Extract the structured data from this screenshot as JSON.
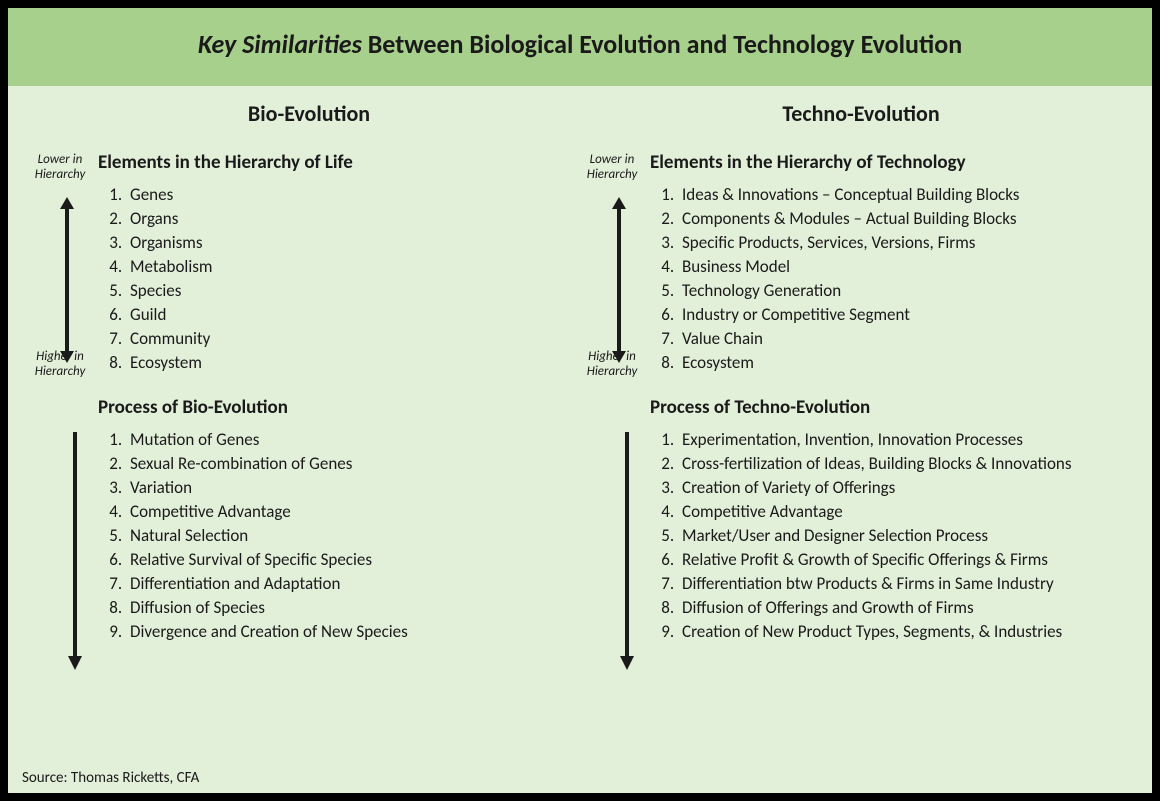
{
  "colors": {
    "page_bg": "#000000",
    "body_bg": "#e2efd9",
    "header_bg": "#a8d08d",
    "text": "#1a1a1a",
    "arrow": "#1a1a1a"
  },
  "typography": {
    "title_fontsize": 26,
    "col_header_fontsize": 22,
    "section_title_fontsize": 19,
    "list_fontsize": 17,
    "hierarchy_label_fontsize": 13,
    "source_fontsize": 15,
    "font_family": "Calibri"
  },
  "title": {
    "italic_part": "Key Similarities",
    "rest": " Between Biological Evolution and Technology Evolution"
  },
  "hierarchy_labels": {
    "top": "Lower in Hierarchy",
    "bottom": "Higher in Hierarchy"
  },
  "left": {
    "header": "Bio-Evolution",
    "elements_title": "Elements in the Hierarchy of Life",
    "elements": [
      "Genes",
      "Organs",
      "Organisms",
      "Metabolism",
      "Species",
      "Guild",
      "Community",
      "Ecosystem"
    ],
    "process_title": "Process of Bio-Evolution",
    "process": [
      "Mutation of Genes",
      "Sexual Re-combination of Genes",
      "Variation",
      "Competitive Advantage",
      "Natural Selection",
      "Relative Survival of Specific Species",
      "Differentiation and Adaptation",
      "Diffusion of Species",
      "Divergence and Creation of New Species"
    ]
  },
  "right": {
    "header": "Techno-Evolution",
    "elements_title": "Elements in the Hierarchy of Technology",
    "elements": [
      "Ideas & Innovations – Conceptual Building Blocks",
      "Components & Modules – Actual Building Blocks",
      "Specific Products, Services, Versions, Firms",
      "Business Model",
      "Technology Generation",
      "Industry or Competitive Segment",
      "Value Chain",
      "Ecosystem"
    ],
    "process_title": "Process of Techno-Evolution",
    "process": [
      "Experimentation, Invention, Innovation Processes",
      "Cross-fertilization of Ideas, Building Blocks & Innovations",
      "Creation of Variety of Offerings",
      "Competitive Advantage",
      "Market/User and Designer Selection Process",
      "Relative Profit & Growth of Specific Offerings & Firms",
      "Differentiation btw Products & Firms in Same Industry",
      "Diffusion of Offerings and Growth of Firms",
      "Creation of New Product Types, Segments, & Industries"
    ]
  },
  "source": "Source: Thomas Ricketts, CFA"
}
